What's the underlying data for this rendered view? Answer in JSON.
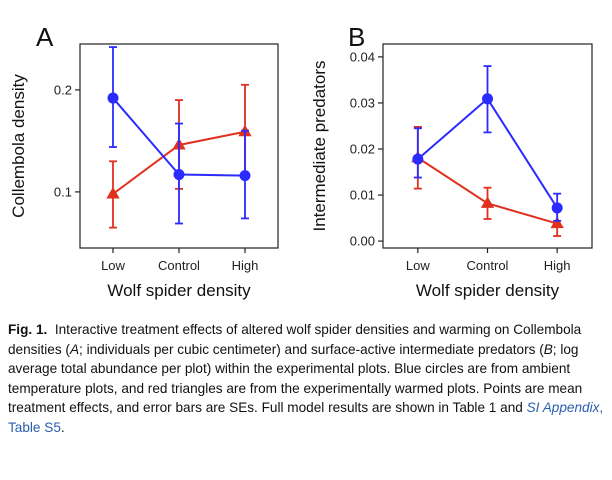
{
  "chart_data": [
    {
      "type": "line",
      "panel": "A",
      "categories": [
        "Low",
        "Control",
        "High"
      ],
      "xlabel": "Wolf spider density",
      "ylabel": "Collembola density",
      "ylim": [
        0.045,
        0.245
      ],
      "yticks": [
        0.1,
        0.2
      ],
      "ytick_labels": [
        "0.1",
        "0.2"
      ],
      "grid": false,
      "series": [
        {
          "values": [
            0.192,
            0.117,
            0.116
          ],
          "err_low": [
            0.144,
            0.069,
            0.074
          ],
          "err_high": [
            0.242,
            0.167,
            0.16
          ],
          "color": "#2b2bff",
          "marker": "circle"
        },
        {
          "values": [
            0.098,
            0.146,
            0.159
          ],
          "err_low": [
            0.065,
            0.103,
            0.118
          ],
          "err_high": [
            0.13,
            0.19,
            0.205
          ],
          "color": "#e0301e",
          "marker": "triangle"
        }
      ]
    },
    {
      "type": "line",
      "panel": "B",
      "categories": [
        "Low",
        "Control",
        "High"
      ],
      "xlabel": "Wolf spider density",
      "ylabel": "Intermediate predators",
      "ylim": [
        -0.0015,
        0.0428
      ],
      "yticks": [
        0.0,
        0.01,
        0.02,
        0.03,
        0.04
      ],
      "ytick_labels": [
        "0.00",
        "0.01",
        "0.02",
        "0.03",
        "0.04"
      ],
      "grid": false,
      "series": [
        {
          "values": [
            0.0178,
            0.0309,
            0.0072
          ],
          "err_low": [
            0.0138,
            0.0236,
            0.0044
          ],
          "err_high": [
            0.0245,
            0.038,
            0.0103
          ],
          "color": "#2b2bff",
          "marker": "circle"
        },
        {
          "values": [
            0.0181,
            0.0082,
            0.0038
          ],
          "err_low": [
            0.0114,
            0.0048,
            0.0011
          ],
          "err_high": [
            0.0248,
            0.0116,
            0.0068
          ],
          "color": "#e0301e",
          "marker": "triangle"
        }
      ]
    }
  ],
  "caption": {
    "fig_label": "Fig. 1.",
    "text_1": "Interactive treatment effects of altered wolf spider densities and warming on Collembola densities (",
    "italic_A": "A",
    "text_2": "; individuals per cubic centimeter) and surface-active intermediate predators (",
    "italic_B": "B",
    "text_3": "; log average total abundance per plot) within the experimental plots. Blue circles are from ambient temperature plots, and red triangles are from the experimentally warmed plots. Points are mean treatment effects, and error bars are SEs. Full model results are shown in Table 1 and ",
    "link_italic": "SI Appendix",
    "link_rest": ", Table S5",
    "text_end": "."
  }
}
